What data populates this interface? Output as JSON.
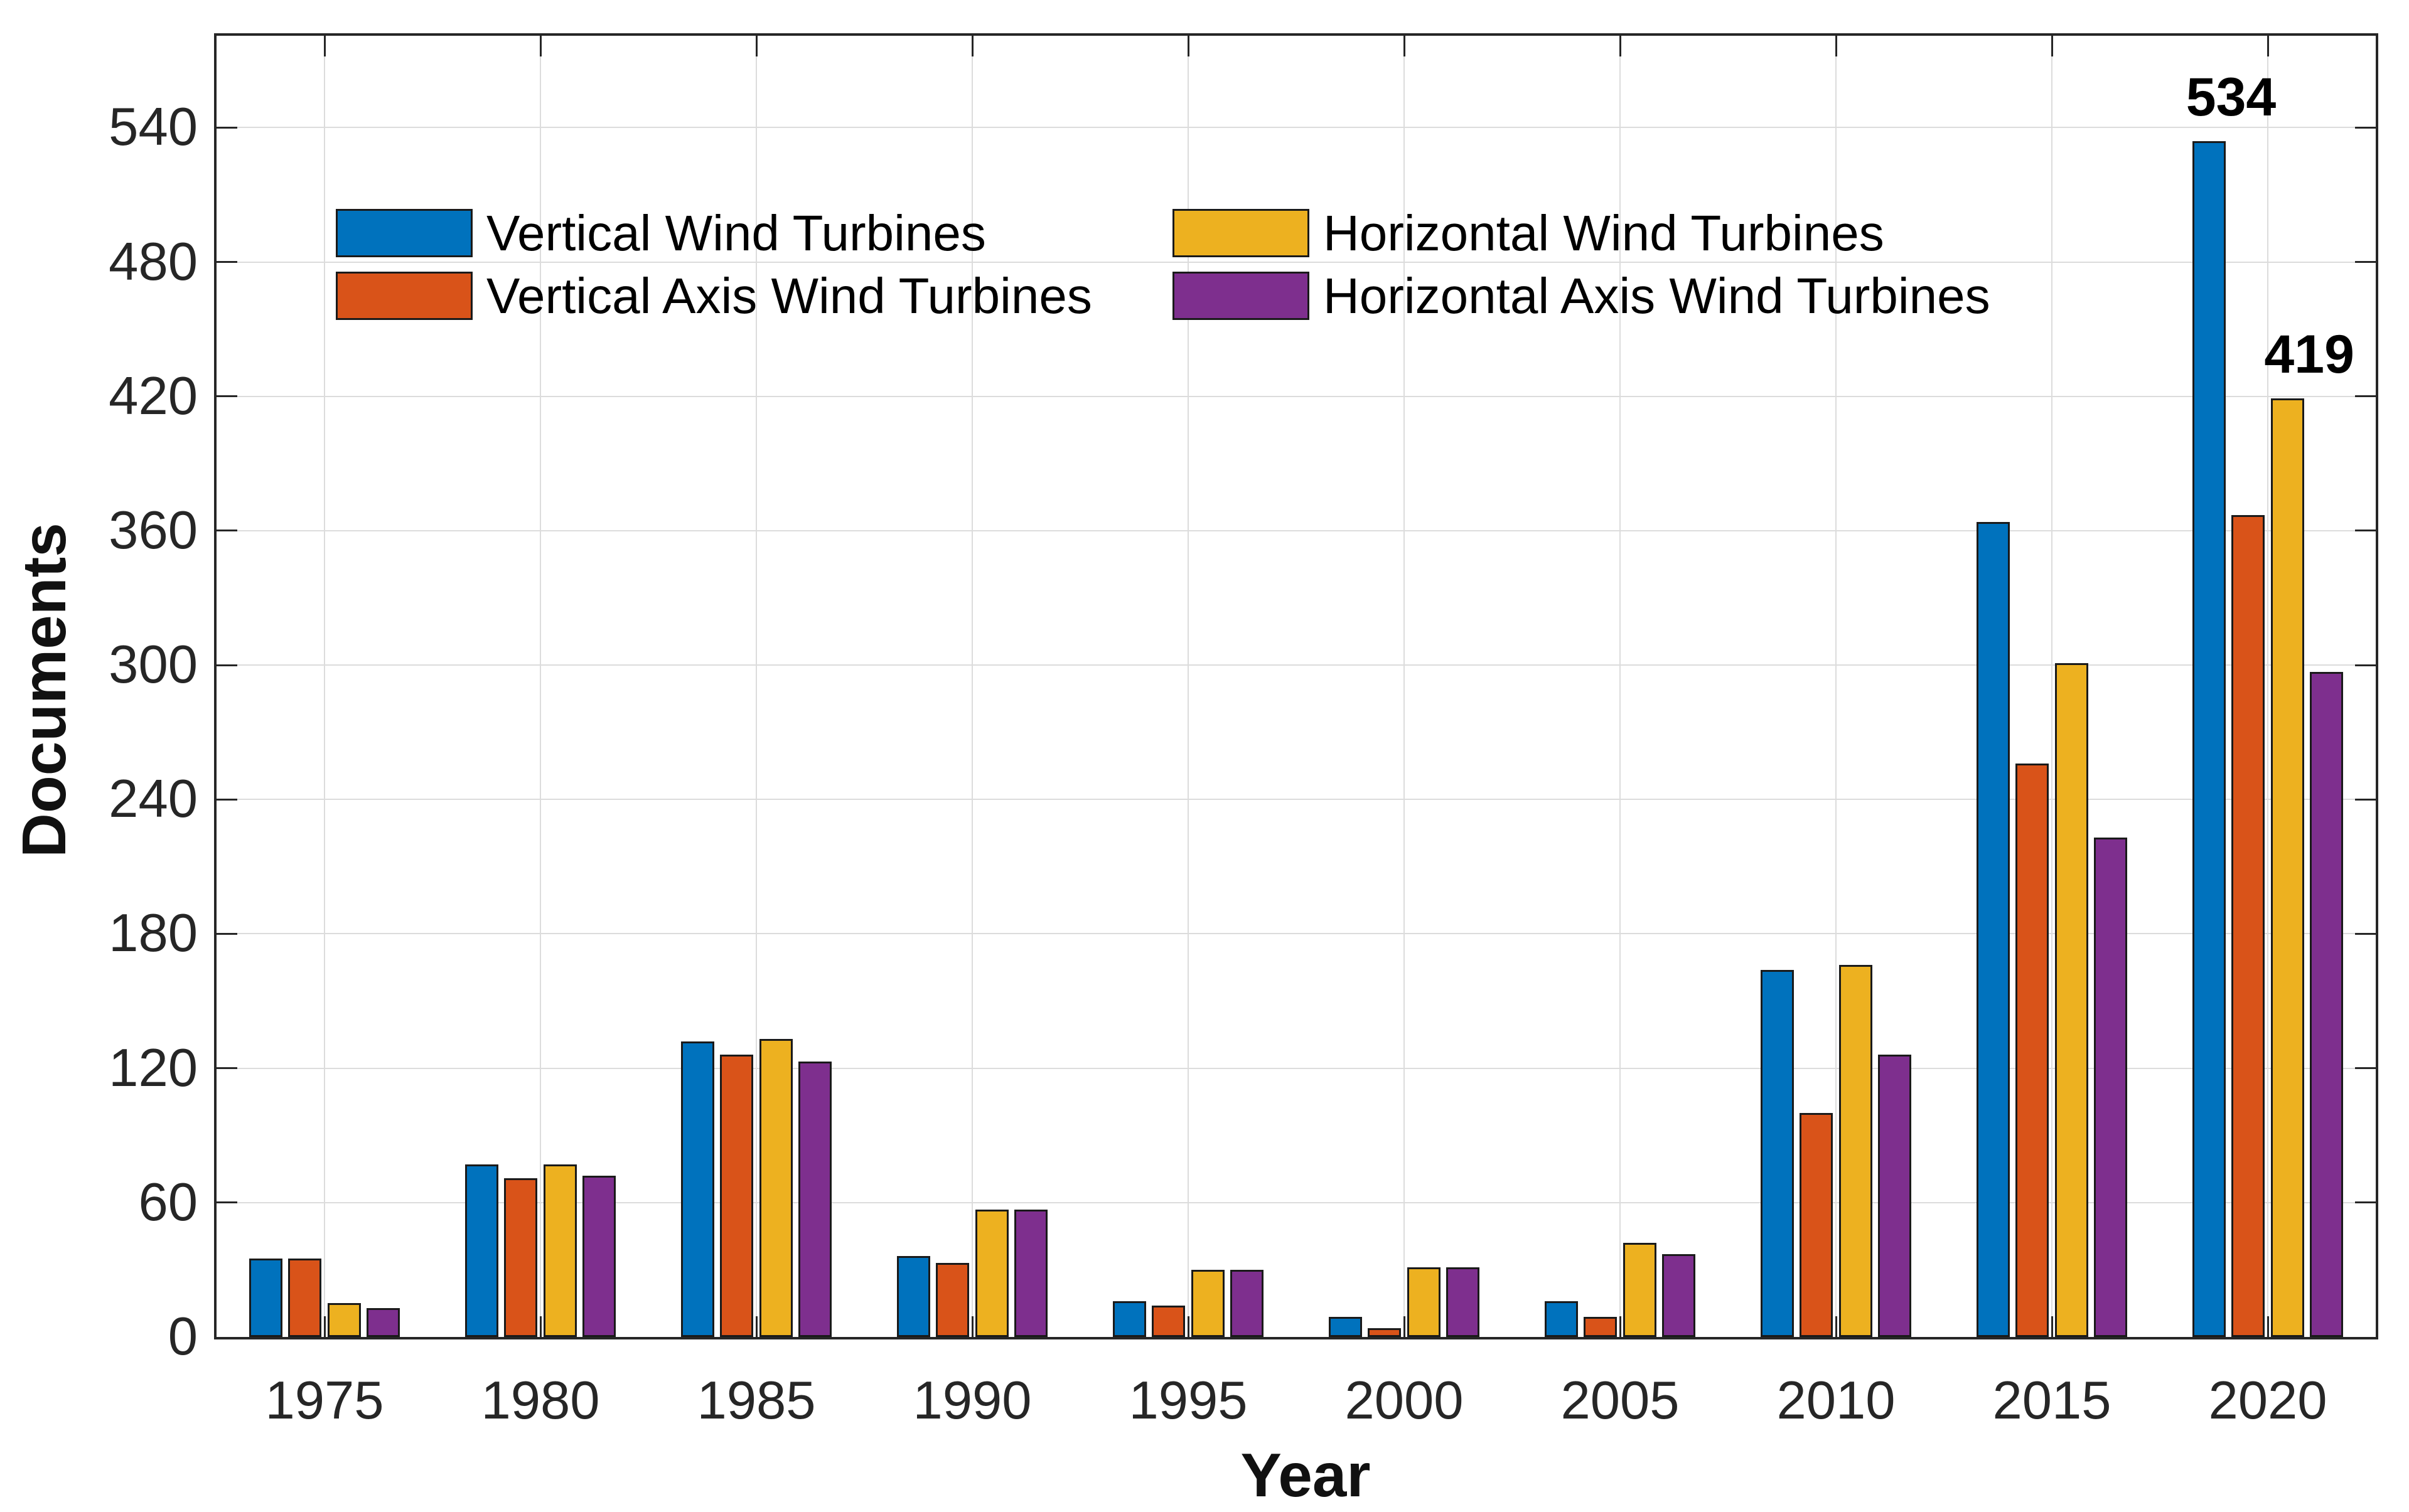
{
  "figure": {
    "xlabel": "Year",
    "ylabel": "Documents"
  },
  "chart_data": {
    "type": "bar",
    "title": "",
    "xlabel": "Year",
    "ylabel": "Documents",
    "categories": [
      "1975",
      "1980",
      "1985",
      "1990",
      "1995",
      "2000",
      "2005",
      "2010",
      "2015",
      "2020"
    ],
    "series": [
      {
        "name": "Vertical Wind Turbines",
        "color": "#0072BD",
        "values": [
          35,
          77,
          132,
          36,
          16,
          9,
          16,
          164,
          364,
          534
        ]
      },
      {
        "name": "Vertical Axis Wind Turbines",
        "color": "#D95319",
        "values": [
          35,
          71,
          126,
          33,
          14,
          4,
          9,
          100,
          256,
          367
        ]
      },
      {
        "name": "Horizontal Wind Turbines",
        "color": "#EDB120",
        "values": [
          15,
          77,
          133,
          57,
          30,
          31,
          42,
          166,
          301,
          419
        ]
      },
      {
        "name": "Horizontal Axis Wind Turbines",
        "color": "#7E2F8E",
        "values": [
          13,
          72,
          123,
          57,
          30,
          31,
          37,
          126,
          223,
          297
        ]
      }
    ],
    "y_ticks": [
      "0",
      "60",
      "120",
      "180",
      "240",
      "300",
      "360",
      "420",
      "480",
      "540"
    ],
    "ylim": [
      0,
      581
    ],
    "grid": true,
    "legend_position": "top-left-inside",
    "legend_columns": 2,
    "bar_value_labels": [
      {
        "text": "534",
        "series_index": 0,
        "category_index": 9
      },
      {
        "text": "419",
        "series_index": 2,
        "category_index": 9
      }
    ],
    "colors": {
      "axis": "#262626",
      "grid": "#dcdcdc",
      "bar_edge": "#1a1a1a",
      "text": "#000000"
    }
  }
}
